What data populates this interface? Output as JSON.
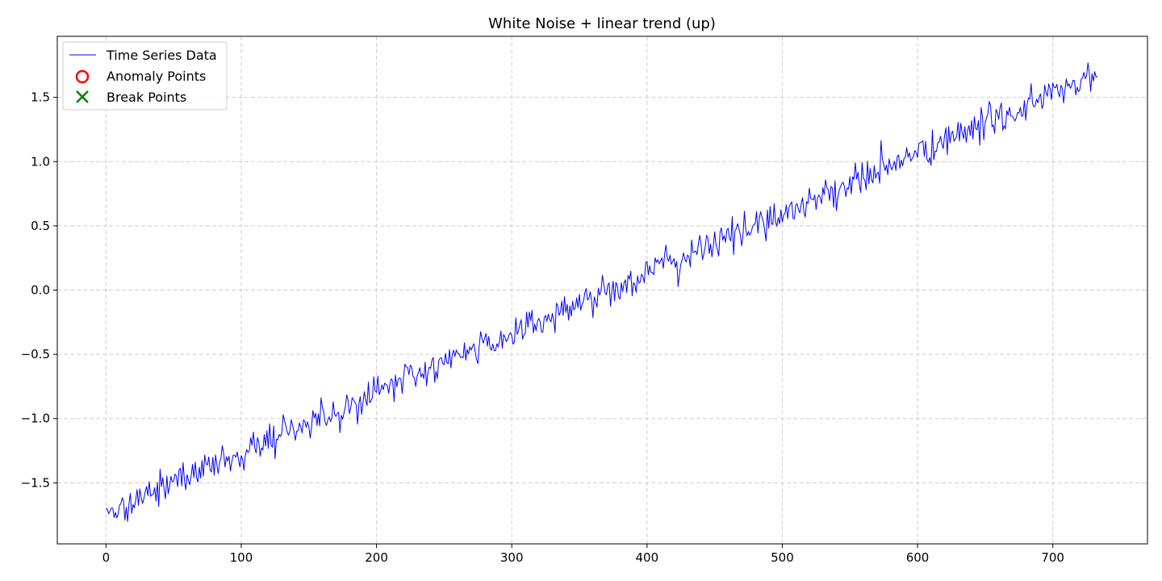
{
  "chart_data": {
    "type": "line",
    "title": "White Noise + linear trend (up)",
    "xlabel": "",
    "ylabel": "",
    "xlim": [
      -36,
      770
    ],
    "ylim": [
      -1.975,
      1.975
    ],
    "x_ticks": [
      0,
      100,
      200,
      300,
      400,
      500,
      600,
      700
    ],
    "x_tick_labels": [
      "0",
      "100",
      "200",
      "300",
      "400",
      "500",
      "600",
      "700"
    ],
    "y_ticks": [
      -1.5,
      -1.0,
      -0.5,
      0.0,
      0.5,
      1.0,
      1.5
    ],
    "y_tick_labels": [
      "−1.5",
      "−1.0",
      "−0.5",
      "0.0",
      "0.5",
      "1.0",
      "1.5"
    ],
    "grid": true,
    "legend": {
      "placement": "upper-left",
      "entries": [
        {
          "label": "Time Series Data",
          "marker": "line",
          "color": "#0000ff"
        },
        {
          "label": "Anomaly Points",
          "marker": "circle",
          "color": "#ff0000"
        },
        {
          "label": "Break Points",
          "marker": "x",
          "color": "#008000"
        }
      ]
    },
    "series": [
      {
        "name": "Time Series Data",
        "color": "#0000ff",
        "x_start": 0,
        "x_step": 1,
        "count": 734,
        "trend_start": -1.73,
        "trend_end": 1.68,
        "noise_std": 0.065,
        "first_value": -1.7,
        "last_value": 1.66
      },
      {
        "name": "Anomaly Points",
        "color": "#ff0000",
        "points": []
      },
      {
        "name": "Break Points",
        "color": "#008000",
        "points": []
      }
    ]
  }
}
